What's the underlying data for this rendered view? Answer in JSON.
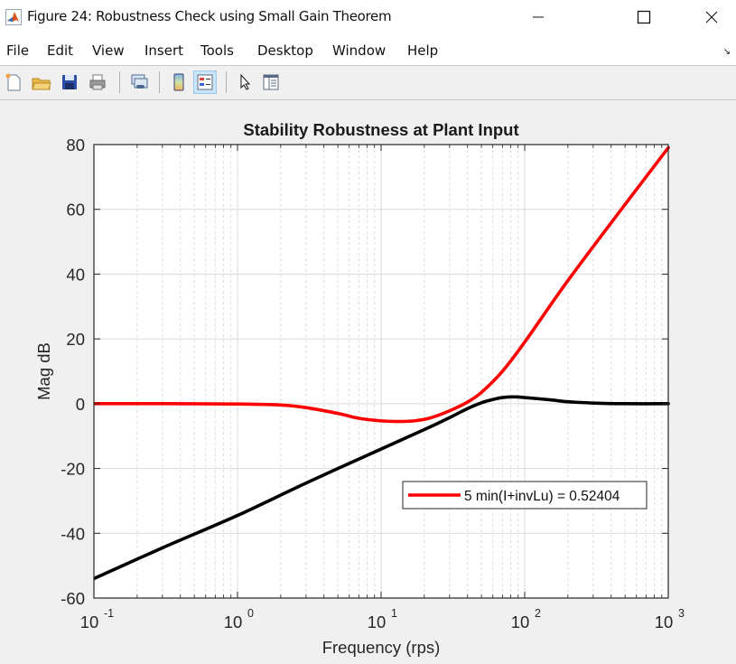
{
  "window": {
    "title": "Figure 24: Robustness Check using Small Gain Theorem",
    "controls": [
      "minimize",
      "maximize",
      "close"
    ]
  },
  "menubar": {
    "items": [
      {
        "label": "File"
      },
      {
        "label": "Edit"
      },
      {
        "label": "View"
      },
      {
        "label": "Insert"
      },
      {
        "label": "Tools"
      },
      {
        "label": "Desktop"
      },
      {
        "label": "Window"
      },
      {
        "label": "Help"
      }
    ]
  },
  "toolbar": {
    "buttons": [
      {
        "icon": "new-figure-icon"
      },
      {
        "icon": "open-file-icon"
      },
      {
        "icon": "save-icon"
      },
      {
        "icon": "print-icon"
      },
      {
        "icon": "link-plot-icon"
      },
      {
        "icon": "colorbar-icon"
      },
      {
        "icon": "legend-icon",
        "active": true
      },
      {
        "icon": "edit-plot-pointer-icon"
      },
      {
        "icon": "property-inspector-icon"
      }
    ]
  },
  "colors": {
    "red_series": "#ff0000",
    "black_series": "#000000",
    "grid": "#d9d9d9",
    "background": "#f0f0f0"
  },
  "chart_data": {
    "type": "line",
    "title": "Stability Robustness at Plant Input",
    "xlabel": "Frequency (rps)",
    "ylabel": "Mag dB",
    "xscale": "log",
    "xlim": [
      0.1,
      1000
    ],
    "ylim": [
      -60,
      80
    ],
    "xticks": [
      {
        "base": "10",
        "exp": "-1",
        "value": 0.1
      },
      {
        "base": "10",
        "exp": "0",
        "value": 1
      },
      {
        "base": "10",
        "exp": "1",
        "value": 10
      },
      {
        "base": "10",
        "exp": "2",
        "value": 100
      },
      {
        "base": "10",
        "exp": "3",
        "value": 1000
      }
    ],
    "yticks": [
      "80",
      "60",
      "40",
      "20",
      "0",
      "-20",
      "-40",
      "-60"
    ],
    "grid": true,
    "minor_grid": true,
    "legend": {
      "position": "inside lower right",
      "entries": [
        {
          "label": "5 min(I+invLu) = 0.52404",
          "color": "#ff0000"
        }
      ]
    },
    "series": [
      {
        "name": "5 min(I+invLu) = 0.52404",
        "color": "#ff0000",
        "x": [
          0.1,
          0.3,
          1,
          2,
          3,
          5,
          7,
          10,
          13,
          17,
          22,
          30,
          40,
          50,
          70,
          100,
          200,
          500,
          1000
        ],
        "values": [
          0,
          0,
          -0.1,
          -0.4,
          -1.2,
          -3.0,
          -4.5,
          -5.3,
          -5.5,
          -5.3,
          -4.4,
          -2.2,
          0.5,
          3.5,
          10,
          19,
          38,
          61.5,
          79
        ]
      },
      {
        "name": "black curve",
        "color": "#000000",
        "x": [
          0.1,
          0.3,
          1,
          3,
          10,
          20,
          30,
          40,
          50,
          60,
          70,
          85,
          100,
          150,
          200,
          300,
          500,
          1000
        ],
        "values": [
          -54,
          -44.5,
          -34.5,
          -24.5,
          -14,
          -8,
          -4.3,
          -1.5,
          0.3,
          1.3,
          1.9,
          2.1,
          1.9,
          1.2,
          0.6,
          0.2,
          0,
          0
        ]
      }
    ]
  }
}
